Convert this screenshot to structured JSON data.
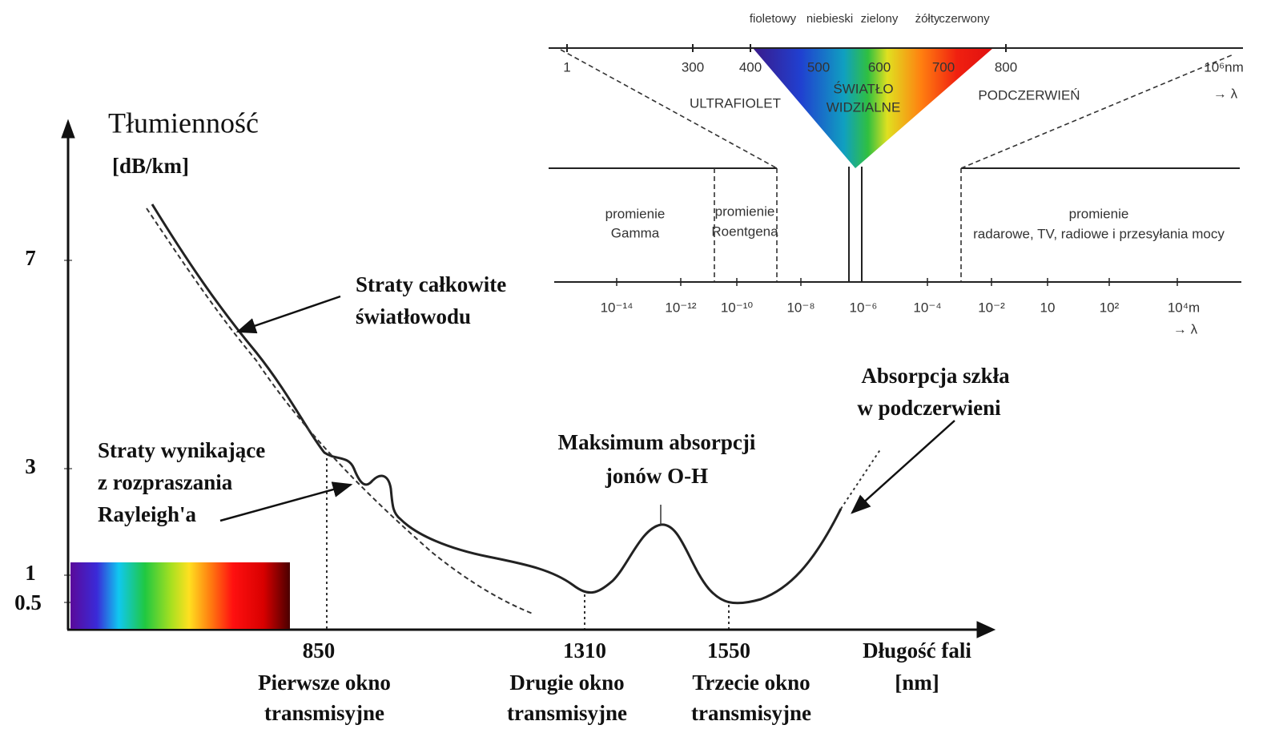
{
  "main": {
    "axis_title": "Tłumienność",
    "axis_unit": "[dB/km]",
    "y_ticks": [
      7,
      3,
      1,
      0.5
    ],
    "x_ticks": [
      850,
      1310,
      1550
    ],
    "windows": [
      [
        "Pierwsze okno",
        "transmisyjne"
      ],
      [
        "Drugie okno",
        "transmisyjne"
      ],
      [
        "Trzecie okno",
        "transmisyjne"
      ]
    ],
    "x_title": [
      "Długość fali",
      "[nm]"
    ],
    "annotations": {
      "total_loss": [
        "Straty całkowite",
        "światłowodu"
      ],
      "rayleigh": [
        "Straty wynikające",
        "z rozpraszania",
        "Rayleigh'a"
      ],
      "oh_peak": [
        "Maksimum absorpcji",
        "jonów O-H"
      ],
      "ir_absorption": [
        "Absorpcja szkła",
        "w podczerwieni"
      ]
    }
  },
  "inset": {
    "colors": [
      "fioletowy",
      "niebieski",
      "zielony",
      "żółty",
      "czerwony"
    ],
    "nm_ticks": [
      "1",
      "300",
      "400",
      "500",
      "600",
      "700",
      "800",
      "10⁶nm"
    ],
    "lambda": "→ λ",
    "regions": [
      "ULTRAFIOLET",
      "ŚWIATŁO",
      "WIDZIALNE",
      "PODCZERWIEŃ"
    ],
    "bands": [
      [
        "promienie",
        "Gamma"
      ],
      [
        "promienie",
        "Roentgena"
      ],
      [
        "promienie",
        "radarowe, TV, radiowe i przesyłania mocy"
      ]
    ],
    "m_ticks": [
      "10⁻¹⁴",
      "10⁻¹²",
      "10⁻¹⁰",
      "10⁻⁸",
      "10⁻⁶",
      "10⁻⁴",
      "10⁻²",
      "10",
      "10²",
      "10⁴m"
    ]
  }
}
